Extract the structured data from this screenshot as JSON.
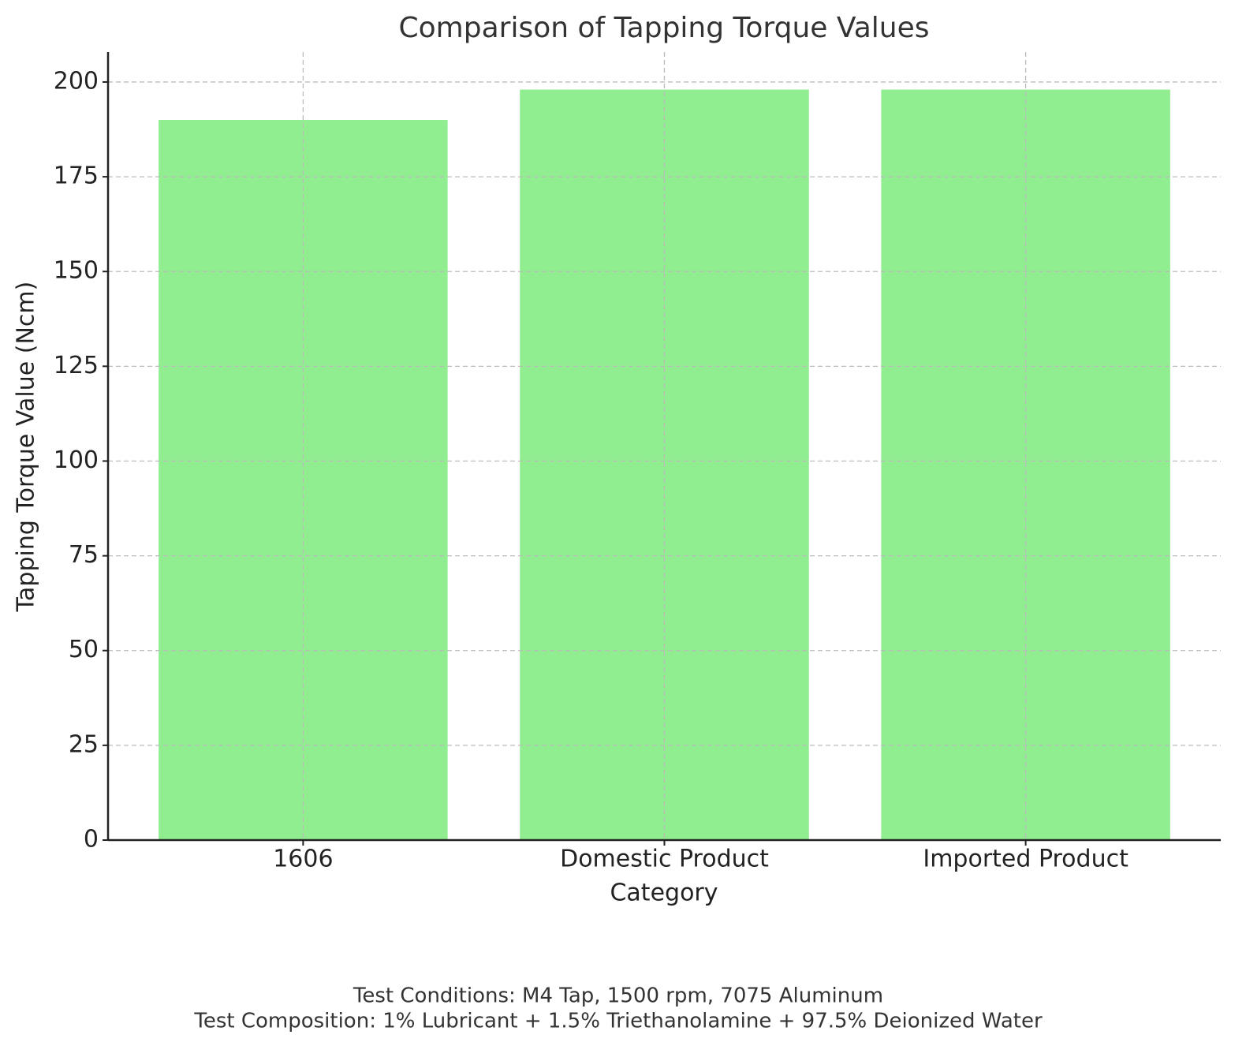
{
  "chart_data": {
    "type": "bar",
    "title": "Comparison of Tapping Torque Values",
    "x_label": "Category",
    "y_label": "Tapping Torque Value (Ncm)",
    "categories": [
      "1606",
      "Domestic Product",
      "Imported Product"
    ],
    "values": [
      190,
      198,
      198
    ],
    "color": "#90ee90",
    "ylim": [
      0,
      207.9
    ],
    "yticks": [
      0,
      25,
      50,
      75,
      100,
      125,
      150,
      175,
      200
    ],
    "grid": true,
    "notes": [
      "Test Conditions: M4 Tap, 1500 rpm, 7075 Aluminum",
      "Test Composition: 1% Lubricant + 1.5% Triethanolamine + 97.5% Deionized Water"
    ]
  }
}
